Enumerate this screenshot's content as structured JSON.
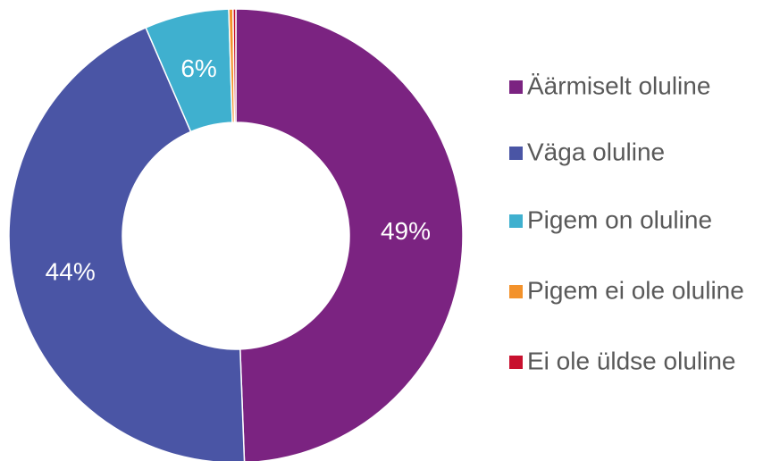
{
  "chart_data": {
    "type": "donut",
    "categories": [
      "Äärmiselt oluline",
      "Väga oluline",
      "Pigem on oluline",
      "Pigem ei ole oluline",
      "Ei ole üldse oluline"
    ],
    "values": [
      49.4,
      44.1,
      6.0,
      0.3,
      0.2
    ],
    "value_labels": [
      "49%",
      "44%",
      "6%",
      null,
      null
    ],
    "colors": [
      "#7b2381",
      "#4a55a5",
      "#3fb0cf",
      "#f3922b",
      "#c8102e"
    ],
    "legend": "right"
  }
}
